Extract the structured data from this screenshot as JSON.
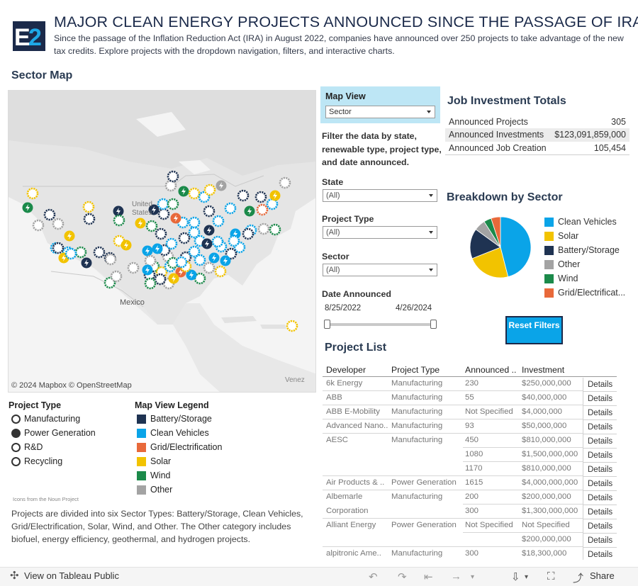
{
  "header": {
    "title": "MAJOR CLEAN ENERGY PROJECTS ANNOUNCED SINCE THE PASSAGE OF IRA",
    "subtitle": "Since the passage of the Inflation Reduction Act (IRA) in August 2022, companies have announced over 250 projects to take advantage of the new tax credits. Explore projects with the dropdown navigation, filters, and interactive charts.",
    "logo_text": "E2"
  },
  "colors": {
    "battery_storage": "#1f3352",
    "clean_vehicles": "#0aa4e8",
    "grid_electrification": "#e8693a",
    "solar": "#f2c300",
    "wind": "#1b8a4a",
    "other": "#a3a3a3",
    "accent": "#bde6f5"
  },
  "map": {
    "title": "Sector Map",
    "attribution": "© 2024 Mapbox  © OpenStreetMap",
    "labels": {
      "mexico": "Mexico",
      "venezuela": "Venez",
      "united_states": "United States"
    }
  },
  "project_type_legend": {
    "title": "Project Type",
    "items": [
      {
        "label": "Manufacturing",
        "icon": "gear-icon"
      },
      {
        "label": "Power Generation",
        "icon": "lightning-icon"
      },
      {
        "label": "R&D",
        "icon": "people-icon"
      },
      {
        "label": "Recycling",
        "icon": "recycle-icon"
      }
    ]
  },
  "map_view_legend": {
    "title": "Map View Legend",
    "items": [
      {
        "label": "Battery/Storage",
        "color": "#1f3352"
      },
      {
        "label": "Clean Vehicles",
        "color": "#0aa4e8"
      },
      {
        "label": "Grid/Electrification",
        "color": "#e8693a"
      },
      {
        "label": "Solar",
        "color": "#f2c300"
      },
      {
        "label": "Wind",
        "color": "#1b8a4a"
      },
      {
        "label": "Other",
        "color": "#a3a3a3"
      }
    ]
  },
  "noun_credit": "Icons from the Noun Project",
  "sector_description": "Projects are divided into six Sector Types: Battery/Storage, Clean Vehicles, Grid/Electrification, Solar, Wind, and Other. The Other category includes biofuel, energy efficiency, geothermal, and hydrogen projects.",
  "filters": {
    "map_view": {
      "label": "Map View",
      "value": "Sector"
    },
    "help": "Filter the data by state, renewable type, project type, and date announced.",
    "state": {
      "label": "State",
      "value": "(All)"
    },
    "project_type": {
      "label": "Project Type",
      "value": "(All)"
    },
    "sector": {
      "label": "Sector",
      "value": "(All)"
    },
    "date": {
      "label": "Date Announced",
      "start": "8/25/2022",
      "end": "4/26/2024"
    }
  },
  "totals": {
    "title": "Job Investment Totals",
    "rows": [
      {
        "label": "Announced Projects",
        "value": "305"
      },
      {
        "label": "Announced Investments",
        "value": "$123,091,859,000"
      },
      {
        "label": "Announced Job Creation",
        "value": "105,454"
      }
    ]
  },
  "breakdown": {
    "title": "Breakdown by Sector",
    "legend": [
      "Clean Vehicles",
      "Solar",
      "Battery/Storage",
      "Other",
      "Wind",
      "Grid/Electrificat..."
    ]
  },
  "chart_data": {
    "type": "pie",
    "categories": [
      "Clean Vehicles",
      "Solar",
      "Battery/Storage",
      "Other",
      "Wind",
      "Grid/Electrification"
    ],
    "values": [
      46,
      23,
      16,
      6,
      4,
      5
    ]
  },
  "reset_button": {
    "label": "Reset Filters"
  },
  "project_list": {
    "title": "Project List",
    "headers": [
      "Developer",
      "Project Type",
      "Announced ..",
      "Investment"
    ],
    "rows": [
      {
        "developer": "6k Energy",
        "type": "Manufacturing",
        "jobs": "230",
        "investment": "$250,000,000"
      },
      {
        "developer": "ABB",
        "type": "Manufacturing",
        "jobs": "55",
        "investment": "$40,000,000"
      },
      {
        "developer": "ABB E-Mobility",
        "type": "Manufacturing",
        "jobs": "Not Specified",
        "investment": "$4,000,000"
      },
      {
        "developer": "Advanced Nano..",
        "type": "Manufacturing",
        "jobs": "93",
        "investment": "$50,000,000"
      },
      {
        "developer": "AESC",
        "type": "Manufacturing",
        "jobs": "450",
        "investment": "$810,000,000"
      },
      {
        "developer": "",
        "type": "",
        "jobs": "1080",
        "investment": "$1,500,000,000"
      },
      {
        "developer": "",
        "type": "",
        "jobs": "1170",
        "investment": "$810,000,000"
      },
      {
        "developer": "Air Products & ..",
        "type": "Power Generation",
        "jobs": "1615",
        "investment": "$4,000,000,000"
      },
      {
        "developer": "Albemarle",
        "type": "Manufacturing",
        "jobs": "200",
        "investment": "$200,000,000"
      },
      {
        "developer": "Corporation",
        "type": "",
        "jobs": "300",
        "investment": "$1,300,000,000"
      },
      {
        "developer": "Alliant Energy",
        "type": "Power Generation",
        "jobs": "Not Specified",
        "investment": "Not Specified"
      },
      {
        "developer": "",
        "type": "",
        "jobs": "",
        "investment": "$200,000,000"
      },
      {
        "developer": "alpitronic Ame..",
        "type": "Manufacturing",
        "jobs": "300",
        "investment": "$18,300,000"
      }
    ],
    "details_label": "Details"
  },
  "footer": {
    "view_public": "View on Tableau Public",
    "share": "Share"
  }
}
